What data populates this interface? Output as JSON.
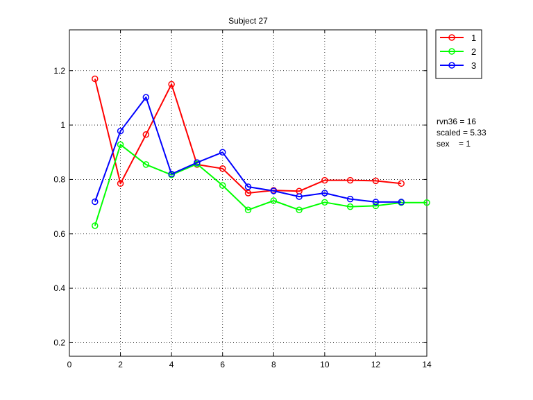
{
  "chart_data": {
    "type": "line",
    "title": "Subject 27",
    "xlabel": "",
    "ylabel": "",
    "xlim": [
      0,
      14
    ],
    "ylim": [
      0.15,
      1.35
    ],
    "xticks": [
      0,
      2,
      4,
      6,
      8,
      10,
      12,
      14
    ],
    "yticks": [
      0.2,
      0.4,
      0.6,
      0.8,
      1,
      1.2
    ],
    "grid": true,
    "legend_position": "outside-top-right",
    "marker": "circle",
    "series": [
      {
        "name": "1",
        "color": "#ff0000",
        "x": [
          1,
          2,
          3,
          4,
          5,
          6,
          7,
          8,
          9,
          10,
          11,
          12,
          13
        ],
        "y": [
          1.17,
          0.785,
          0.965,
          1.15,
          0.855,
          0.84,
          0.75,
          0.76,
          0.757,
          0.797,
          0.797,
          0.795,
          0.785
        ]
      },
      {
        "name": "2",
        "color": "#00ff00",
        "x": [
          1,
          2,
          3,
          4,
          5,
          6,
          7,
          8,
          9,
          10,
          11,
          12,
          13,
          14
        ],
        "y": [
          0.63,
          0.928,
          0.855,
          0.817,
          0.857,
          0.778,
          0.688,
          0.722,
          0.688,
          0.716,
          0.7,
          0.703,
          0.715,
          0.715
        ]
      },
      {
        "name": "3",
        "color": "#0000ff",
        "x": [
          1,
          2,
          3,
          4,
          5,
          6,
          7,
          8,
          9,
          10,
          11,
          12,
          13
        ],
        "y": [
          0.718,
          0.978,
          1.102,
          0.82,
          0.862,
          0.9,
          0.773,
          0.758,
          0.737,
          0.75,
          0.728,
          0.717,
          0.717
        ]
      }
    ]
  },
  "annotations": {
    "line1": "rvn36 = 16",
    "line2": "scaled = 5.33",
    "line3": "sex    = 1"
  }
}
